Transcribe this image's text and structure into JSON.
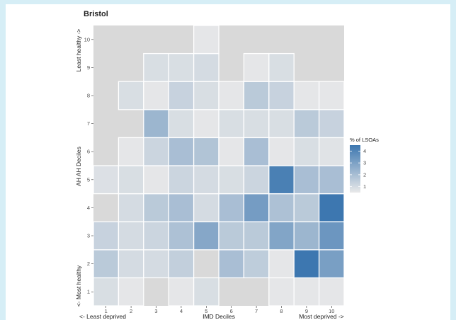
{
  "chart_data": {
    "type": "heatmap",
    "title": "Bristol",
    "xlabel": "IMD Deciles",
    "ylabel": "AH AH Deciles",
    "x_axis_left_note": "<- Least deprived",
    "x_axis_right_note": "Most deprived ->",
    "y_axis_top_note": "Least healthy ->",
    "y_axis_bottom_note": "<- Most healthy",
    "x_ticks": [
      "1",
      "2",
      "3",
      "4",
      "5",
      "6",
      "7",
      "8",
      "9",
      "10"
    ],
    "y_ticks": [
      "1",
      "2",
      "3",
      "4",
      "5",
      "6",
      "7",
      "8",
      "9",
      "10"
    ],
    "legend_title": "% of LSOAs",
    "legend_ticks": [
      "1",
      "2",
      "3",
      "4"
    ],
    "legend_range": [
      0.5,
      4.5
    ],
    "legend_placement": "right",
    "colors": {
      "low": "#e9e9e9",
      "high": "#3d77b0",
      "panel_background": "#d9d9d9",
      "tile_border": "#ffffff",
      "page_background": "#d6eef6"
    },
    "cells": [
      {
        "x": 1,
        "y": 1,
        "value": 0.9
      },
      {
        "x": 2,
        "y": 1,
        "value": 0.6
      },
      {
        "x": 4,
        "y": 1,
        "value": 0.6
      },
      {
        "x": 5,
        "y": 1,
        "value": 0.9
      },
      {
        "x": 8,
        "y": 1,
        "value": 0.6
      },
      {
        "x": 9,
        "y": 1,
        "value": 0.6
      },
      {
        "x": 10,
        "y": 1,
        "value": 0.6
      },
      {
        "x": 1,
        "y": 2,
        "value": 1.6
      },
      {
        "x": 2,
        "y": 2,
        "value": 1.0
      },
      {
        "x": 3,
        "y": 2,
        "value": 1.0
      },
      {
        "x": 4,
        "y": 2,
        "value": 1.4
      },
      {
        "x": 6,
        "y": 2,
        "value": 2.0
      },
      {
        "x": 7,
        "y": 2,
        "value": 1.5
      },
      {
        "x": 8,
        "y": 2,
        "value": 0.6
      },
      {
        "x": 9,
        "y": 2,
        "value": 4.6
      },
      {
        "x": 10,
        "y": 2,
        "value": 3.1
      },
      {
        "x": 1,
        "y": 3,
        "value": 1.3
      },
      {
        "x": 2,
        "y": 3,
        "value": 1.0
      },
      {
        "x": 3,
        "y": 3,
        "value": 1.2
      },
      {
        "x": 4,
        "y": 3,
        "value": 1.9
      },
      {
        "x": 5,
        "y": 3,
        "value": 2.8
      },
      {
        "x": 6,
        "y": 3,
        "value": 1.6
      },
      {
        "x": 7,
        "y": 3,
        "value": 1.6
      },
      {
        "x": 8,
        "y": 3,
        "value": 2.9
      },
      {
        "x": 9,
        "y": 3,
        "value": 2.3
      },
      {
        "x": 10,
        "y": 3,
        "value": 3.4
      },
      {
        "x": 2,
        "y": 4,
        "value": 1.0
      },
      {
        "x": 3,
        "y": 4,
        "value": 1.6
      },
      {
        "x": 4,
        "y": 4,
        "value": 2.0
      },
      {
        "x": 5,
        "y": 4,
        "value": 1.0
      },
      {
        "x": 6,
        "y": 4,
        "value": 2.0
      },
      {
        "x": 7,
        "y": 4,
        "value": 3.2
      },
      {
        "x": 8,
        "y": 4,
        "value": 1.9
      },
      {
        "x": 9,
        "y": 4,
        "value": 1.6
      },
      {
        "x": 10,
        "y": 4,
        "value": 4.5
      },
      {
        "x": 1,
        "y": 5,
        "value": 0.8
      },
      {
        "x": 2,
        "y": 5,
        "value": 0.9
      },
      {
        "x": 3,
        "y": 5,
        "value": 0.6
      },
      {
        "x": 4,
        "y": 5,
        "value": 1.2
      },
      {
        "x": 5,
        "y": 5,
        "value": 1.0
      },
      {
        "x": 6,
        "y": 5,
        "value": 0.9
      },
      {
        "x": 7,
        "y": 5,
        "value": 1.2
      },
      {
        "x": 8,
        "y": 5,
        "value": 4.2
      },
      {
        "x": 9,
        "y": 5,
        "value": 2.0
      },
      {
        "x": 10,
        "y": 5,
        "value": 2.0
      },
      {
        "x": 2,
        "y": 6,
        "value": 0.6
      },
      {
        "x": 3,
        "y": 6,
        "value": 1.2
      },
      {
        "x": 4,
        "y": 6,
        "value": 2.0
      },
      {
        "x": 5,
        "y": 6,
        "value": 1.8
      },
      {
        "x": 6,
        "y": 6,
        "value": 0.6
      },
      {
        "x": 7,
        "y": 6,
        "value": 2.0
      },
      {
        "x": 8,
        "y": 6,
        "value": 0.6
      },
      {
        "x": 9,
        "y": 6,
        "value": 0.9
      },
      {
        "x": 10,
        "y": 6,
        "value": 0.7
      },
      {
        "x": 3,
        "y": 7,
        "value": 2.3
      },
      {
        "x": 4,
        "y": 7,
        "value": 0.9
      },
      {
        "x": 5,
        "y": 7,
        "value": 0.6
      },
      {
        "x": 6,
        "y": 7,
        "value": 0.9
      },
      {
        "x": 7,
        "y": 7,
        "value": 0.9
      },
      {
        "x": 8,
        "y": 7,
        "value": 0.9
      },
      {
        "x": 9,
        "y": 7,
        "value": 1.6
      },
      {
        "x": 10,
        "y": 7,
        "value": 1.3
      },
      {
        "x": 2,
        "y": 8,
        "value": 0.9
      },
      {
        "x": 3,
        "y": 8,
        "value": 0.6
      },
      {
        "x": 4,
        "y": 8,
        "value": 1.3
      },
      {
        "x": 5,
        "y": 8,
        "value": 0.9
      },
      {
        "x": 6,
        "y": 8,
        "value": 0.6
      },
      {
        "x": 7,
        "y": 8,
        "value": 1.6
      },
      {
        "x": 8,
        "y": 8,
        "value": 1.3
      },
      {
        "x": 9,
        "y": 8,
        "value": 0.6
      },
      {
        "x": 10,
        "y": 8,
        "value": 0.6
      },
      {
        "x": 3,
        "y": 9,
        "value": 0.9
      },
      {
        "x": 4,
        "y": 9,
        "value": 0.9
      },
      {
        "x": 5,
        "y": 9,
        "value": 1.0
      },
      {
        "x": 7,
        "y": 9,
        "value": 0.6
      },
      {
        "x": 8,
        "y": 9,
        "value": 0.9
      },
      {
        "x": 5,
        "y": 10,
        "value": 0.6
      }
    ]
  }
}
